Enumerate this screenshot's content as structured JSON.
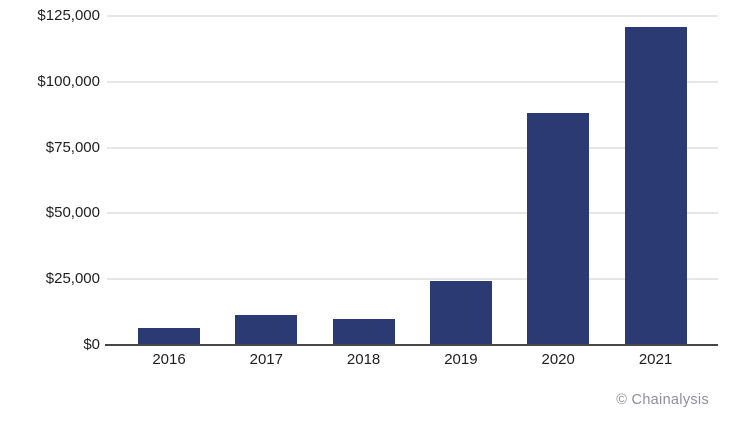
{
  "chart_data": {
    "type": "bar",
    "title": "",
    "xlabel": "",
    "ylabel": "",
    "categories": [
      "2016",
      "2017",
      "2018",
      "2019",
      "2020",
      "2021"
    ],
    "values": [
      6500,
      11500,
      10000,
      24500,
      88000,
      121000
    ],
    "ylim": [
      0,
      125000
    ],
    "y_ticks": [
      {
        "value": 0,
        "label": "$0"
      },
      {
        "value": 25000,
        "label": "$25,000"
      },
      {
        "value": 50000,
        "label": "$50,000"
      },
      {
        "value": 75000,
        "label": "$75,000"
      },
      {
        "value": 100000,
        "label": "$100,000"
      },
      {
        "value": 125000,
        "label": "$125,000"
      }
    ],
    "grid": true,
    "legend": false,
    "bar_color": "#2b3a72",
    "gridline_color": "#e7e5e5",
    "baseline_color": "#474747",
    "label_color": "#1f1f1f",
    "background_color": "#ffffff"
  },
  "attribution": {
    "text": "© Chainalysis"
  }
}
